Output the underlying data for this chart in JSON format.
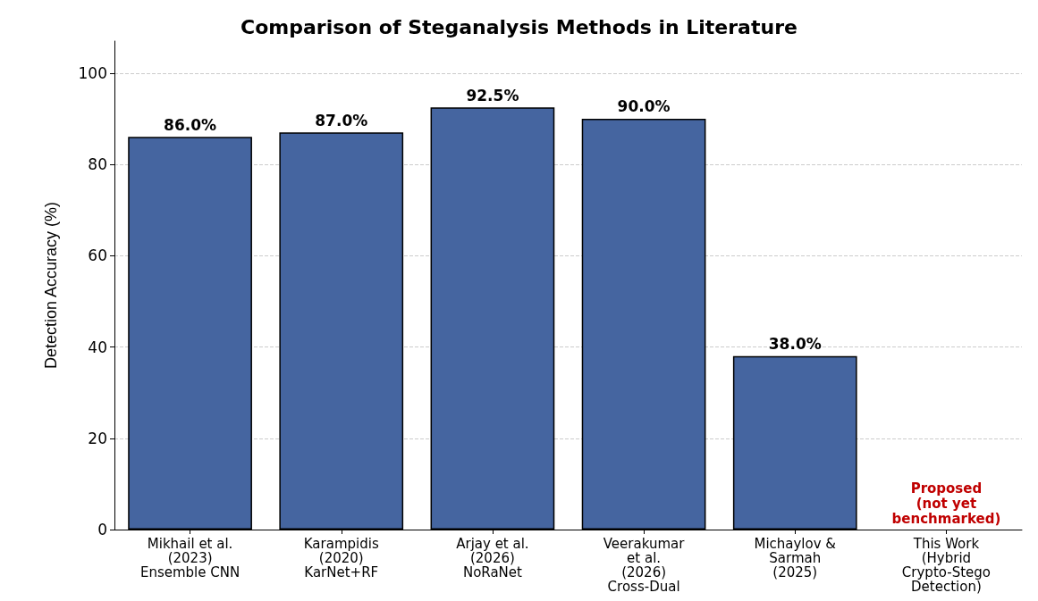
{
  "chart_data": {
    "type": "bar",
    "title": "Comparison of Steganalysis Methods in Literature",
    "ylabel": "Detection Accuracy (%)",
    "categories": [
      "Mikhail et al.\n(2023)\nEnsemble CNN",
      "Karampidis\n(2020)\nKarNet+RF",
      "Arjay et al.\n(2026)\nNoRaNet",
      "Veerakumar\net al.\n(2026)\nCross-Dual",
      "Michaylov &\nSarmah\n(2025)",
      "This Work\n(Hybrid\nCrypto-Stego\nDetection)"
    ],
    "values": [
      86.0,
      87.0,
      92.5,
      90.0,
      38.0,
      null
    ],
    "value_labels": [
      "86.0%",
      "87.0%",
      "92.5%",
      "90.0%",
      "38.0%",
      null
    ],
    "color": "#4565a0",
    "annotations": [
      "Proposed\n(not yet\nbenchmarked)"
    ],
    "ylim": [
      0,
      107
    ],
    "yticks": [
      0,
      20,
      40,
      60,
      80,
      100
    ],
    "grid": "y"
  }
}
